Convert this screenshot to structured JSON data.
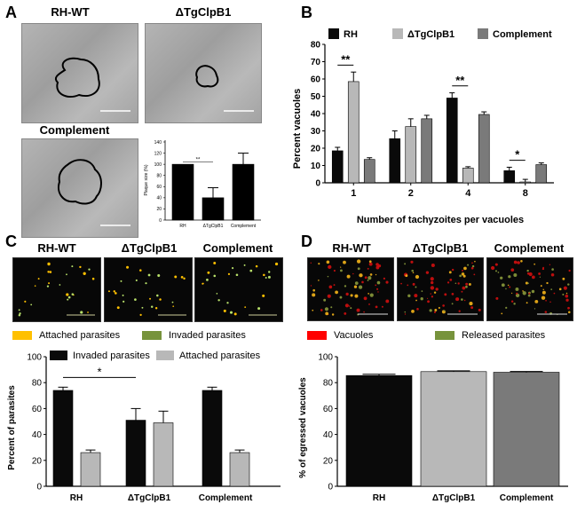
{
  "panels": {
    "A": {
      "letter": "A",
      "titles": [
        "RH-WT",
        "ΔTgClpB1",
        "Complement"
      ],
      "inset_chart": {
        "type": "bar",
        "ylabel": "Plaque size (%)",
        "categories": [
          "RH",
          "ΔTgClpB1",
          "Complement"
        ],
        "values": [
          100,
          40,
          100
        ],
        "errors": [
          0,
          18,
          20
        ],
        "ylim": [
          0,
          140
        ],
        "yticks": [
          0,
          20,
          40,
          60,
          80,
          100,
          120,
          140
        ],
        "significance": "**"
      }
    },
    "B": {
      "letter": "B",
      "legend": [
        "RH",
        "ΔTgClpB1",
        "Complement"
      ]
    },
    "C": {
      "letter": "C",
      "titles": [
        "RH-WT",
        "ΔTgClpB1",
        "Complement"
      ],
      "image_legend": [
        "Attached parasites",
        "Invaded parasites"
      ],
      "legend": [
        "Invaded parasites",
        "Attached parasites"
      ]
    },
    "D": {
      "letter": "D",
      "titles": [
        "RH-WT",
        "ΔTgClpB1",
        "Complement"
      ],
      "image_legend": [
        "Vacuoles",
        "Released parasites"
      ]
    }
  },
  "colors": {
    "rh": "#0a0a0a",
    "ko": "#b8b8b8",
    "comp": "#7a7a7a",
    "attached": "#ffc000",
    "invaded": "#77933c",
    "vacuoles": "#ff0000",
    "released": "#77933c"
  },
  "chart_data": [
    {
      "id": "B",
      "type": "bar",
      "xlabel": "Number of tachyzoites per vacuoles",
      "ylabel": "Percent vacuoles",
      "categories": [
        "1",
        "2",
        "4",
        "8"
      ],
      "ylim": [
        0,
        80
      ],
      "yticks": [
        0,
        10,
        20,
        30,
        40,
        50,
        60,
        70,
        80
      ],
      "series": [
        {
          "name": "RH",
          "values": [
            18.5,
            25.5,
            49,
            7
          ],
          "errors": [
            2,
            4.5,
            3,
            2
          ]
        },
        {
          "name": "ΔTgClpB1",
          "values": [
            58.5,
            32.5,
            8.5,
            0.5
          ],
          "errors": [
            5.5,
            4.5,
            0.8,
            1.5
          ]
        },
        {
          "name": "Complement",
          "values": [
            13.5,
            37,
            39.5,
            10.5
          ],
          "errors": [
            1,
            2,
            1.5,
            1
          ]
        }
      ],
      "significance": [
        {
          "category": "1",
          "label": "**"
        },
        {
          "category": "4",
          "label": "**"
        },
        {
          "category": "8",
          "label": "*"
        }
      ]
    },
    {
      "id": "C",
      "type": "bar",
      "ylabel": "Percent of parasites",
      "categories": [
        "RH",
        "ΔTgClpB1",
        "Complement"
      ],
      "ylim": [
        0,
        100
      ],
      "yticks": [
        0,
        20,
        40,
        60,
        80,
        100
      ],
      "series": [
        {
          "name": "Invaded parasites",
          "values": [
            74,
            51,
            74
          ],
          "errors": [
            2.5,
            9,
            2.5
          ]
        },
        {
          "name": "Attached parasites",
          "values": [
            26,
            49,
            26
          ],
          "errors": [
            2,
            9,
            2
          ]
        }
      ],
      "significance": [
        {
          "from": "RH",
          "to": "ΔTgClpB1",
          "label": "*"
        }
      ]
    },
    {
      "id": "D",
      "type": "bar",
      "ylabel": "% of egressed vacuoles",
      "categories": [
        "RH",
        "ΔTgClpB1",
        "Complement"
      ],
      "ylim": [
        0,
        100
      ],
      "yticks": [
        0,
        20,
        40,
        60,
        80,
        100
      ],
      "series": [
        {
          "name": "",
          "values": [
            85.5,
            88.5,
            88
          ],
          "errors": [
            1,
            0.6,
            0.6
          ]
        }
      ]
    }
  ]
}
